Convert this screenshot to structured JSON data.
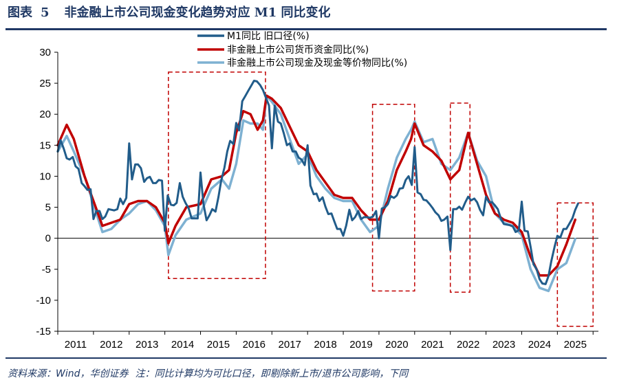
{
  "header": {
    "figure_label": "图表",
    "figure_number": "5",
    "title": "非金融上市公司现金变化趋势对应 M1 同比变化"
  },
  "footer": {
    "source": "资料来源：Wind，华创证券",
    "note": "注：同比计算均为可比口径，即剔除新上市/退市公司影响，下同"
  },
  "colors": {
    "m1": "#215c8a",
    "monetary": "#c00000",
    "cash_equiv": "#7eb1d2",
    "box": "#c00000",
    "header_blue": "#1f3864"
  },
  "chart_data": {
    "type": "line",
    "title": "非金融上市公司现金变化趋势对应 M1 同比变化",
    "xlabel": "",
    "ylabel": "",
    "ylim": [
      -15,
      30
    ],
    "xlim": [
      2011.0,
      2026.15
    ],
    "yticks": [
      30,
      25,
      20,
      15,
      10,
      5,
      0,
      -5,
      -10,
      -15
    ],
    "xticks": [
      "2011",
      "2012",
      "2013",
      "2014",
      "2015",
      "2016",
      "2017",
      "2018",
      "2019",
      "2020",
      "2021",
      "2022",
      "2023",
      "2024",
      "2025"
    ],
    "legend_position": "top-center",
    "series": [
      {
        "name": "M1同比  旧口径(%)",
        "color": "#215c8a",
        "x": [
          2011.0,
          2011.08,
          2011.17,
          2011.25,
          2011.33,
          2011.42,
          2011.5,
          2011.58,
          2011.67,
          2011.75,
          2011.83,
          2011.92,
          2012.0,
          2012.08,
          2012.17,
          2012.25,
          2012.33,
          2012.42,
          2012.5,
          2012.58,
          2012.67,
          2012.75,
          2012.83,
          2012.92,
          2013.0,
          2013.08,
          2013.17,
          2013.25,
          2013.33,
          2013.42,
          2013.5,
          2013.58,
          2013.67,
          2013.75,
          2013.83,
          2013.92,
          2014.0,
          2014.08,
          2014.17,
          2014.25,
          2014.33,
          2014.42,
          2014.5,
          2014.58,
          2014.67,
          2014.75,
          2014.83,
          2014.92,
          2015.0,
          2015.08,
          2015.17,
          2015.25,
          2015.33,
          2015.42,
          2015.5,
          2015.58,
          2015.67,
          2015.75,
          2015.83,
          2015.92,
          2016.0,
          2016.08,
          2016.17,
          2016.25,
          2016.33,
          2016.42,
          2016.5,
          2016.58,
          2016.67,
          2016.75,
          2016.83,
          2016.92,
          2017.0,
          2017.08,
          2017.17,
          2017.25,
          2017.33,
          2017.42,
          2017.5,
          2017.58,
          2017.67,
          2017.75,
          2017.83,
          2017.92,
          2018.0,
          2018.08,
          2018.17,
          2018.25,
          2018.33,
          2018.42,
          2018.5,
          2018.58,
          2018.67,
          2018.75,
          2018.83,
          2018.92,
          2019.0,
          2019.08,
          2019.17,
          2019.25,
          2019.33,
          2019.42,
          2019.5,
          2019.58,
          2019.67,
          2019.75,
          2019.83,
          2019.92,
          2020.0,
          2020.08,
          2020.17,
          2020.25,
          2020.33,
          2020.42,
          2020.5,
          2020.58,
          2020.67,
          2020.75,
          2020.83,
          2020.92,
          2021.0,
          2021.08,
          2021.17,
          2021.25,
          2021.33,
          2021.42,
          2021.5,
          2021.58,
          2021.67,
          2021.75,
          2021.83,
          2021.92,
          2022.0,
          2022.08,
          2022.17,
          2022.25,
          2022.33,
          2022.42,
          2022.5,
          2022.58,
          2022.67,
          2022.75,
          2022.83,
          2022.92,
          2023.0,
          2023.08,
          2023.17,
          2023.25,
          2023.33,
          2023.42,
          2023.5,
          2023.58,
          2023.67,
          2023.75,
          2023.83,
          2023.92,
          2024.0,
          2024.08,
          2024.17,
          2024.25,
          2024.33,
          2024.42,
          2024.5,
          2024.58,
          2024.67,
          2024.75,
          2024.83,
          2024.92,
          2025.0,
          2025.08,
          2025.17,
          2025.25,
          2025.33,
          2025.42,
          2025.5,
          2025.58
        ],
        "values": [
          14.0,
          15.8,
          14.4,
          12.9,
          12.7,
          13.1,
          11.6,
          11.2,
          8.9,
          8.4,
          7.8,
          7.9,
          3.1,
          4.4,
          4.4,
          3.1,
          3.5,
          4.7,
          4.6,
          4.5,
          4.7,
          6.4,
          5.5,
          6.5,
          15.3,
          9.5,
          11.9,
          11.9,
          11.3,
          9.1,
          9.7,
          9.9,
          8.9,
          8.9,
          9.4,
          9.3,
          1.2,
          6.9,
          5.4,
          5.3,
          5.7,
          8.9,
          6.7,
          5.7,
          4.8,
          3.2,
          3.2,
          3.2,
          10.6,
          5.6,
          2.9,
          3.7,
          4.7,
          4.3,
          6.6,
          9.3,
          11.4,
          14.0,
          15.7,
          15.2,
          18.6,
          17.4,
          22.1,
          22.9,
          23.7,
          24.6,
          25.4,
          25.3,
          24.7,
          23.9,
          22.7,
          21.4,
          14.5,
          21.4,
          18.8,
          18.5,
          17.0,
          15.0,
          15.3,
          14.0,
          14.0,
          13.0,
          12.7,
          11.8,
          15.0,
          8.5,
          7.1,
          7.2,
          6.0,
          6.6,
          5.1,
          3.9,
          4.0,
          2.7,
          1.5,
          1.5,
          0.4,
          2.0,
          4.6,
          2.9,
          3.4,
          4.4,
          3.1,
          3.4,
          3.4,
          3.3,
          3.5,
          4.4,
          0.0,
          4.8,
          5.0,
          5.5,
          6.8,
          6.5,
          6.9,
          8.0,
          8.1,
          9.4,
          10.0,
          8.6,
          14.7,
          7.4,
          7.1,
          6.2,
          6.1,
          5.5,
          4.9,
          4.2,
          3.7,
          2.8,
          3.0,
          3.5,
          -1.9,
          4.7,
          4.7,
          5.1,
          4.6,
          5.8,
          6.7,
          6.1,
          6.4,
          5.8,
          4.6,
          3.7,
          6.7,
          5.8,
          5.8,
          5.3,
          4.7,
          3.1,
          2.3,
          2.2,
          2.1,
          1.9,
          1.0,
          1.3,
          5.9,
          1.2,
          1.1,
          -1.4,
          -4.2,
          -5.0,
          -6.6,
          -7.3,
          -7.4,
          -6.1,
          -3.7,
          -1.4,
          0.4,
          0.1,
          1.5,
          1.5,
          2.3,
          3.2,
          4.6,
          5.6
        ]
      },
      {
        "name": "非金融上市公司货币资金同比(%)",
        "color": "#c00000",
        "x": [
          2011.0,
          2011.25,
          2011.45,
          2011.75,
          2012.0,
          2012.25,
          2012.5,
          2012.75,
          2013.0,
          2013.25,
          2013.5,
          2013.75,
          2014.0,
          2014.1,
          2014.3,
          2014.6,
          2015.0,
          2015.3,
          2015.6,
          2015.8,
          2016.0,
          2016.2,
          2016.4,
          2016.6,
          2016.75,
          2016.85,
          2017.0,
          2017.25,
          2017.5,
          2017.75,
          2018.0,
          2018.25,
          2018.5,
          2018.75,
          2019.0,
          2019.25,
          2019.5,
          2019.75,
          2020.0,
          2020.25,
          2020.5,
          2020.75,
          2020.9,
          2021.0,
          2021.25,
          2021.5,
          2021.75,
          2022.0,
          2022.25,
          2022.5,
          2022.75,
          2023.0,
          2023.25,
          2023.5,
          2023.75,
          2024.0,
          2024.25,
          2024.5,
          2024.75,
          2025.0,
          2025.25,
          2025.5
        ],
        "values": [
          15.0,
          18.3,
          16.0,
          10.0,
          6.0,
          2.0,
          2.5,
          3.0,
          5.5,
          6.0,
          6.0,
          5.0,
          2.5,
          -0.8,
          2.0,
          5.0,
          5.5,
          9.5,
          10.0,
          11.0,
          17.0,
          20.5,
          20.0,
          17.5,
          19.0,
          23.0,
          22.5,
          21.0,
          18.0,
          15.0,
          14.0,
          11.0,
          9.0,
          7.0,
          6.5,
          6.5,
          4.5,
          3.0,
          3.0,
          6.0,
          11.0,
          14.0,
          16.0,
          18.5,
          15.0,
          14.0,
          12.5,
          9.5,
          11.0,
          17.0,
          12.0,
          7.0,
          4.0,
          3.0,
          2.5,
          1.0,
          -3.0,
          -6.0,
          -6.0,
          -4.5,
          -1.0,
          3.0
        ]
      },
      {
        "name": "非金融上市公司现金及现金等价物同比(%)",
        "color": "#7eb1d2",
        "x": [
          2011.0,
          2011.25,
          2011.45,
          2011.75,
          2012.0,
          2012.25,
          2012.5,
          2012.75,
          2013.0,
          2013.25,
          2013.5,
          2013.75,
          2014.0,
          2014.1,
          2014.3,
          2014.6,
          2015.0,
          2015.3,
          2015.6,
          2015.8,
          2016.0,
          2016.2,
          2016.4,
          2016.6,
          2016.75,
          2016.85,
          2017.0,
          2017.25,
          2017.5,
          2017.75,
          2018.0,
          2018.25,
          2018.5,
          2018.75,
          2019.0,
          2019.25,
          2019.5,
          2019.75,
          2020.0,
          2020.25,
          2020.5,
          2020.75,
          2020.9,
          2021.0,
          2021.25,
          2021.5,
          2021.75,
          2022.0,
          2022.25,
          2022.5,
          2022.75,
          2023.0,
          2023.25,
          2023.5,
          2023.75,
          2024.0,
          2024.25,
          2024.5,
          2024.75,
          2025.0,
          2025.25,
          2025.5
        ],
        "values": [
          14.0,
          16.5,
          14.0,
          10.0,
          5.5,
          1.0,
          1.5,
          3.0,
          4.0,
          5.5,
          6.0,
          4.5,
          2.0,
          -2.7,
          0.5,
          3.0,
          4.0,
          8.0,
          9.5,
          8.0,
          12.0,
          19.0,
          18.5,
          18.5,
          17.5,
          23.0,
          22.0,
          20.0,
          16.0,
          12.0,
          13.5,
          10.0,
          8.0,
          6.5,
          6.0,
          6.0,
          3.0,
          1.0,
          2.0,
          8.0,
          13.0,
          16.0,
          17.5,
          18.8,
          15.5,
          16.0,
          12.0,
          11.0,
          13.0,
          17.0,
          12.5,
          10.0,
          4.0,
          2.5,
          2.0,
          0.5,
          -5.0,
          -8.0,
          -8.5,
          -5.0,
          -4.0,
          -0.1
        ]
      }
    ],
    "highlight_boxes": [
      {
        "x": [
          2014.1,
          2016.82
        ],
        "y": [
          -6.5,
          26.8
        ]
      },
      {
        "x": [
          2019.82,
          2021.0
        ],
        "y": [
          -8.5,
          21.6
        ]
      },
      {
        "x": [
          2022.0,
          2022.55
        ],
        "y": [
          -8.7,
          21.8
        ]
      },
      {
        "x": [
          2025.0,
          2026.0
        ],
        "y": [
          -14.2,
          5.7
        ]
      }
    ]
  }
}
